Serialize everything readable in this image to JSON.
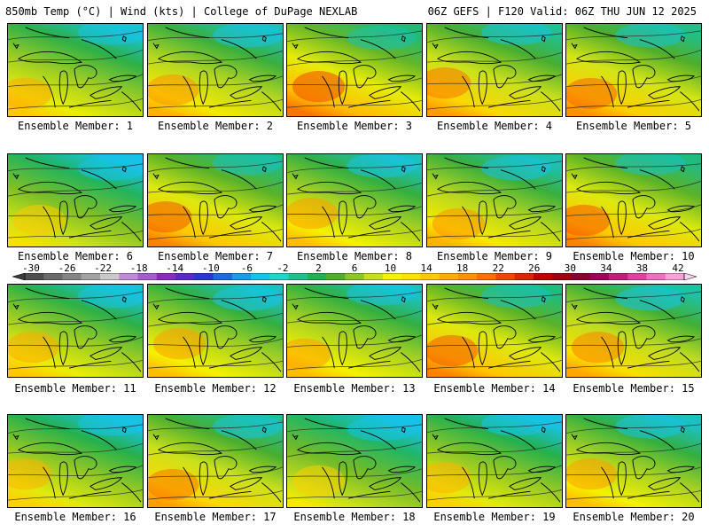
{
  "header": {
    "left_title": "850mb Temp (°C) | Wind (kts) | College of DuPage NEXLAB",
    "right_title": "06Z GEFS | F120 Valid: 06Z THU JUN 12 2025"
  },
  "colorbar": {
    "labels": [
      "-30",
      "-26",
      "-22",
      "-18",
      "-14",
      "-10",
      "-6",
      "-2",
      "2",
      "6",
      "10",
      "14",
      "18",
      "22",
      "26",
      "30",
      "34",
      "38",
      "42"
    ],
    "colors": [
      "#4e4e4e",
      "#6a6a6a",
      "#858585",
      "#a3a3a3",
      "#c9c9c9",
      "#c08ad8",
      "#a65bd0",
      "#8a2bc0",
      "#5a2ac8",
      "#2a36d0",
      "#1f6ae0",
      "#1a9be8",
      "#17c2e8",
      "#1fd6c8",
      "#20c08a",
      "#22b050",
      "#4fae2a",
      "#8cc526",
      "#c6df1f",
      "#f4f200",
      "#ffe100",
      "#ffc800",
      "#ffae00",
      "#ff9100",
      "#ff6f00",
      "#f04800",
      "#d82600",
      "#c00000",
      "#a00010",
      "#8a0030",
      "#a0005a",
      "#c0207a",
      "#e040a0",
      "#f070c0",
      "#f9a0d8"
    ]
  },
  "members": [
    {
      "label": "Ensemble Member: 1",
      "warmth": 0.48
    },
    {
      "label": "Ensemble Member: 2",
      "warmth": 0.52
    },
    {
      "label": "Ensemble Member: 3",
      "warmth": 0.62
    },
    {
      "label": "Ensemble Member: 4",
      "warmth": 0.56
    },
    {
      "label": "Ensemble Member: 5",
      "warmth": 0.58
    },
    {
      "label": "Ensemble Member: 6",
      "warmth": 0.42
    },
    {
      "label": "Ensemble Member: 7",
      "warmth": 0.6
    },
    {
      "label": "Ensemble Member: 8",
      "warmth": 0.5
    },
    {
      "label": "Ensemble Member: 9",
      "warmth": 0.52
    },
    {
      "label": "Ensemble Member: 10",
      "warmth": 0.6
    },
    {
      "label": "Ensemble Member: 11",
      "warmth": 0.48
    },
    {
      "label": "Ensemble Member: 12",
      "warmth": 0.5
    },
    {
      "label": "Ensemble Member: 13",
      "warmth": 0.5
    },
    {
      "label": "Ensemble Member: 14",
      "warmth": 0.6
    },
    {
      "label": "Ensemble Member: 15",
      "warmth": 0.54
    },
    {
      "label": "Ensemble Member: 16",
      "warmth": 0.46
    },
    {
      "label": "Ensemble Member: 17",
      "warmth": 0.56
    },
    {
      "label": "Ensemble Member: 18",
      "warmth": 0.4
    },
    {
      "label": "Ensemble Member: 19",
      "warmth": 0.46
    },
    {
      "label": "Ensemble Member: 20",
      "warmth": 0.5
    }
  ]
}
